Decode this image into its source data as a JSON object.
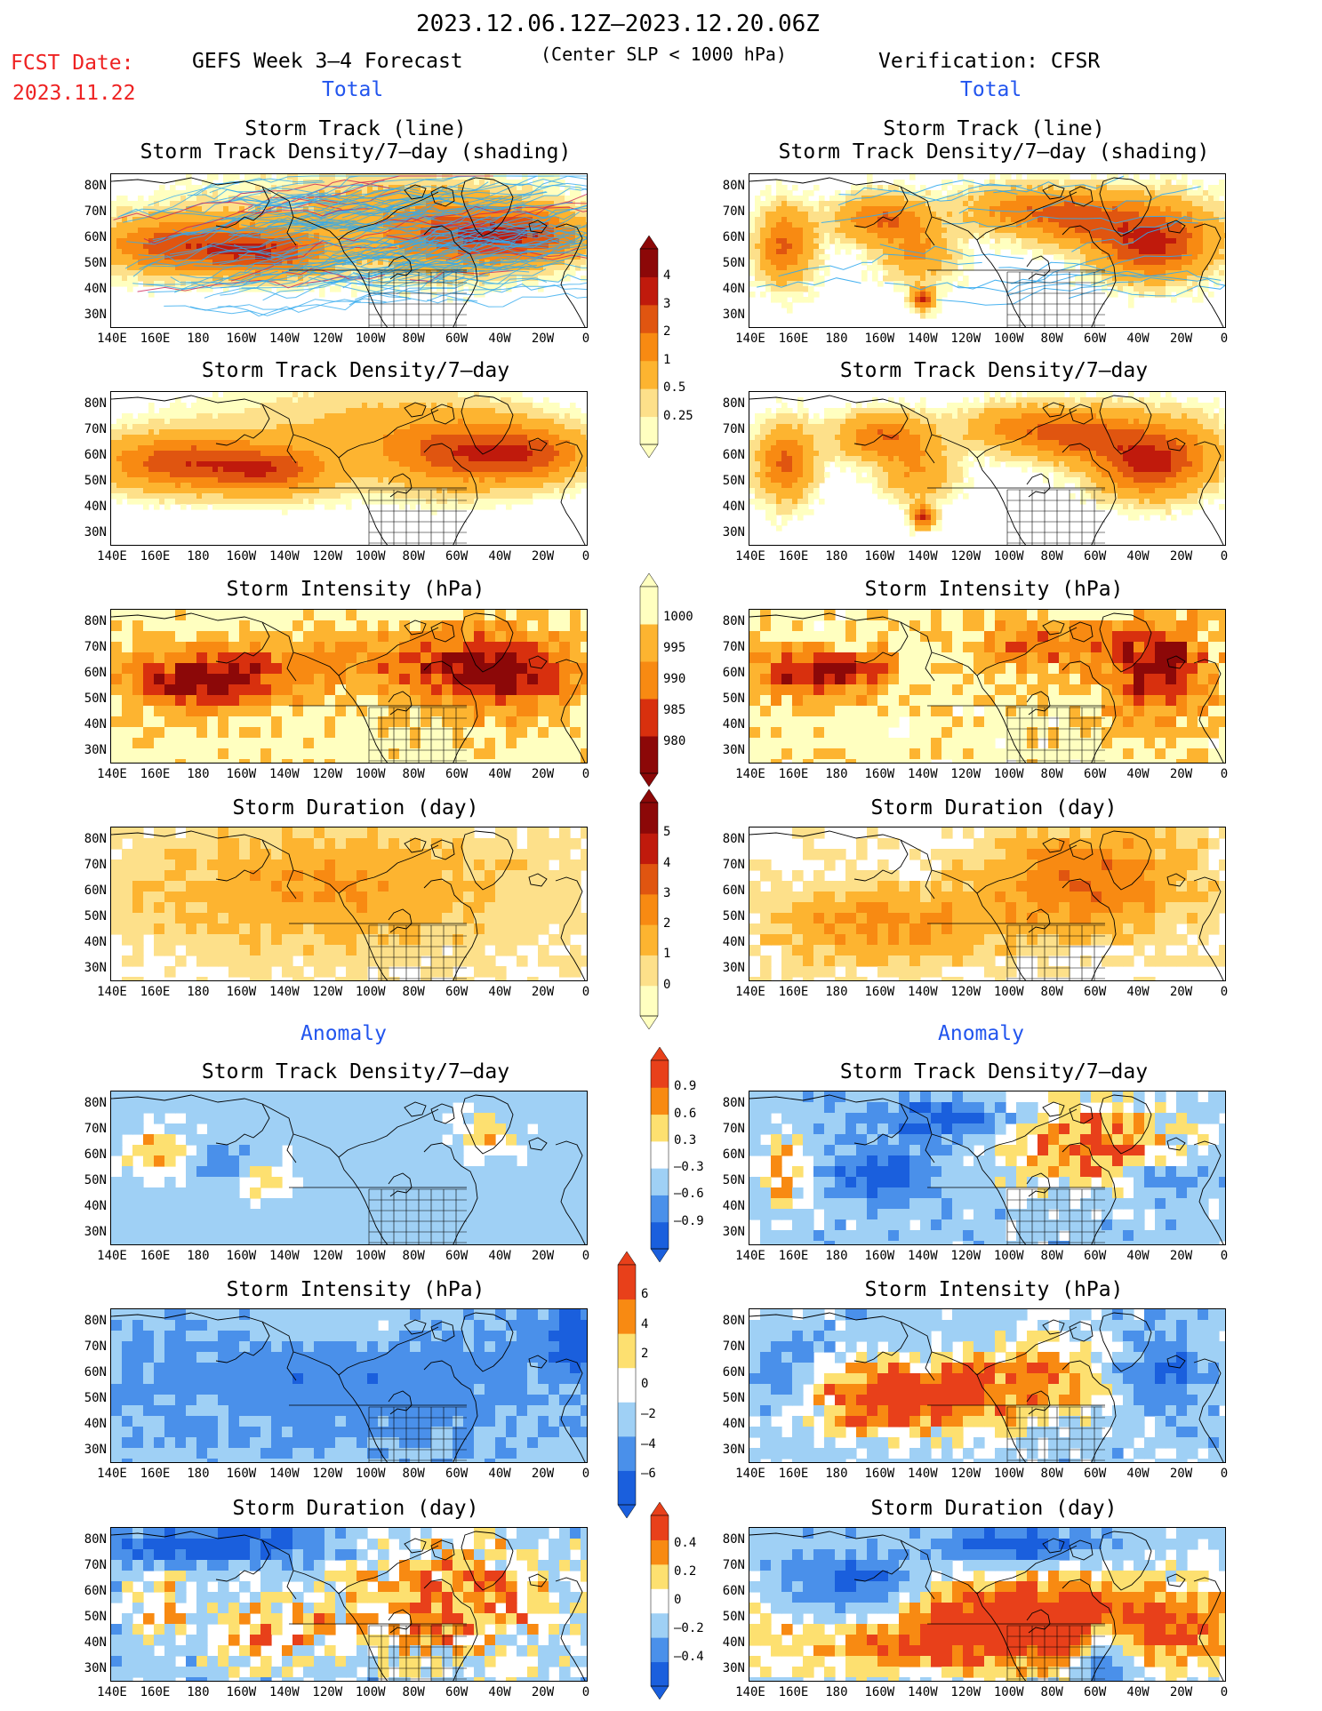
{
  "header": {
    "date_range": "2023.12.06.12Z–2023.12.20.06Z",
    "fcst_label": "FCST Date:",
    "fcst_date": "2023.11.22",
    "left_title": "GEFS Week 3–4 Forecast",
    "center_note": "(Center SLP < 1000 hPa)",
    "right_title": "Verification: CFSR",
    "total_label": "Total",
    "anomaly_label": "Anomaly"
  },
  "colors": {
    "fcst_red": "#ee2222",
    "section_blue": "#2255ee",
    "dens": [
      "#ffffc0",
      "#fde08a",
      "#fdb430",
      "#f88a12",
      "#e05510",
      "#c01a0c",
      "#8c0808"
    ],
    "intensity": [
      "#8c0808",
      "#d8300e",
      "#f68a0f",
      "#fdb430",
      "#ffffc0"
    ],
    "duration": [
      "#ffffc0",
      "#fde08a",
      "#fdb430",
      "#f88a12",
      "#e05510",
      "#c01a0c",
      "#8c0808"
    ],
    "anom": [
      "#1a5fdd",
      "#4a90ea",
      "#9fd0f5",
      "#ffffff",
      "#fde070",
      "#f88a12",
      "#e8401a"
    ],
    "track_line": "#33aaee"
  },
  "axes": {
    "x_ticks": [
      "140E",
      "160E",
      "180",
      "160W",
      "140W",
      "120W",
      "100W",
      "80W",
      "60W",
      "40W",
      "20W",
      "0"
    ],
    "y_ticks": [
      "80N",
      "70N",
      "60N",
      "50N",
      "40N",
      "30N"
    ]
  },
  "panels": {
    "storm_track_line": "Storm Track (line)",
    "storm_track_shading": "Storm Track Density/7–day (shading)",
    "storm_track_density": "Storm Track Density/7–day",
    "storm_intensity": "Storm Intensity (hPa)",
    "storm_duration": "Storm Duration (day)"
  },
  "colorbars": {
    "density": [
      "4",
      "3",
      "2",
      "1",
      "0.5",
      "0.25"
    ],
    "intensity": [
      "1000",
      "995",
      "990",
      "985",
      "980"
    ],
    "duration": [
      "5",
      "4",
      "3",
      "2",
      "1",
      "0"
    ],
    "anom_density": [
      "0.9",
      "0.6",
      "0.3",
      "–0.3",
      "–0.6",
      "–0.9"
    ],
    "anom_intensity": [
      "6",
      "4",
      "2",
      "0",
      "–2",
      "–4",
      "–6"
    ],
    "anom_duration": [
      "0.4",
      "0.2",
      "0",
      "–0.2",
      "–0.4"
    ]
  }
}
